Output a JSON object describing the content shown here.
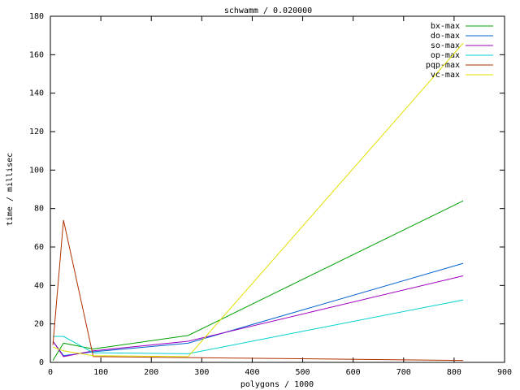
{
  "chart_data": {
    "type": "line",
    "title": "schwamm / 0.020000",
    "x_label": "polygons / 1000",
    "y_label": "time / millisec",
    "x": [
      5,
      26,
      85,
      273,
      818
    ],
    "series": [
      {
        "name": "bx-max",
        "color": "#00a000",
        "values": [
          1,
          10,
          7,
          14,
          84
        ]
      },
      {
        "name": "do-max",
        "color": "#0060d0",
        "values": [
          11,
          3.5,
          5.5,
          10,
          51.5
        ]
      },
      {
        "name": "so-max",
        "color": "#a000c0",
        "values": [
          11,
          3,
          6,
          11,
          45
        ]
      },
      {
        "name": "op-max",
        "color": "#00d0d0",
        "values": [
          13.5,
          13.5,
          5,
          4.5,
          32.5
        ]
      },
      {
        "name": "pqp-max",
        "color": "#b03000",
        "values": [
          9,
          74,
          3,
          2.5,
          1
        ]
      },
      {
        "name": "vc-max",
        "color": "#e0e000",
        "values": [
          8,
          6,
          3.5,
          3,
          166
        ]
      }
    ],
    "xlim": [
      0,
      900
    ],
    "xticks": [
      0,
      100,
      200,
      300,
      400,
      500,
      600,
      700,
      800,
      900
    ],
    "ylim": [
      0,
      180
    ],
    "yticks": [
      0,
      20,
      40,
      60,
      80,
      100,
      120,
      140,
      160,
      180
    ],
    "legend": "top-right",
    "grid": false
  }
}
